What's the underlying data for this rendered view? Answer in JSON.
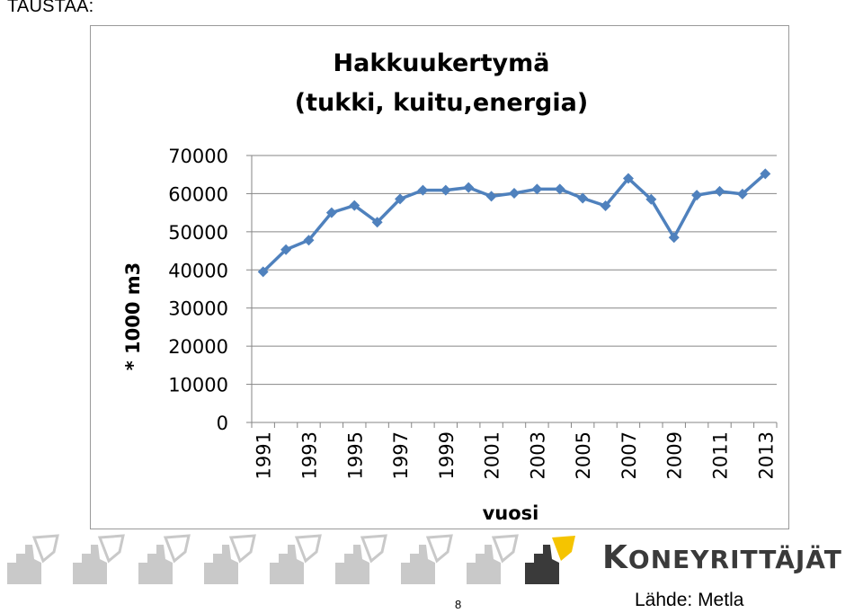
{
  "header": {
    "text": "TAUSTAA:"
  },
  "chart_data": {
    "type": "line",
    "title": [
      "Hakkuukertymä",
      "(tukki, kuitu,energia)"
    ],
    "xlabel": "vuosi",
    "ylabel": "* 1000 m3",
    "ylim": [
      0,
      70000
    ],
    "yticks": [
      0,
      10000,
      20000,
      30000,
      40000,
      50000,
      60000,
      70000
    ],
    "xtick_labels": [
      "1991",
      "1993",
      "1995",
      "1997",
      "1999",
      "2001",
      "2003",
      "2005",
      "2007",
      "2009",
      "2011",
      "2013"
    ],
    "grid": true,
    "legend": "none",
    "x": [
      1991,
      1992,
      1993,
      1994,
      1995,
      1996,
      1997,
      1998,
      1999,
      2000,
      2001,
      2002,
      2003,
      2004,
      2005,
      2006,
      2007,
      2008,
      2009,
      2010,
      2011,
      2012,
      2013
    ],
    "series": [
      {
        "values": [
          39500,
          45300,
          47800,
          55000,
          56900,
          52500,
          58600,
          60900,
          60900,
          61600,
          59300,
          60100,
          61200,
          61200,
          58800,
          56800,
          64000,
          58500,
          48500,
          59600,
          60600,
          59900,
          65200
        ],
        "color": "#4f81bd"
      }
    ]
  },
  "footer": {
    "brand_text": "KONEYRITTÄJÄT",
    "page_number": "8",
    "source": "Lähde: Metla"
  },
  "colors": {
    "logo_gray": "#c9c9c9",
    "logo_dark": "#3a3a3a",
    "logo_yellow": "#f5c400",
    "gridline": "#868686"
  }
}
